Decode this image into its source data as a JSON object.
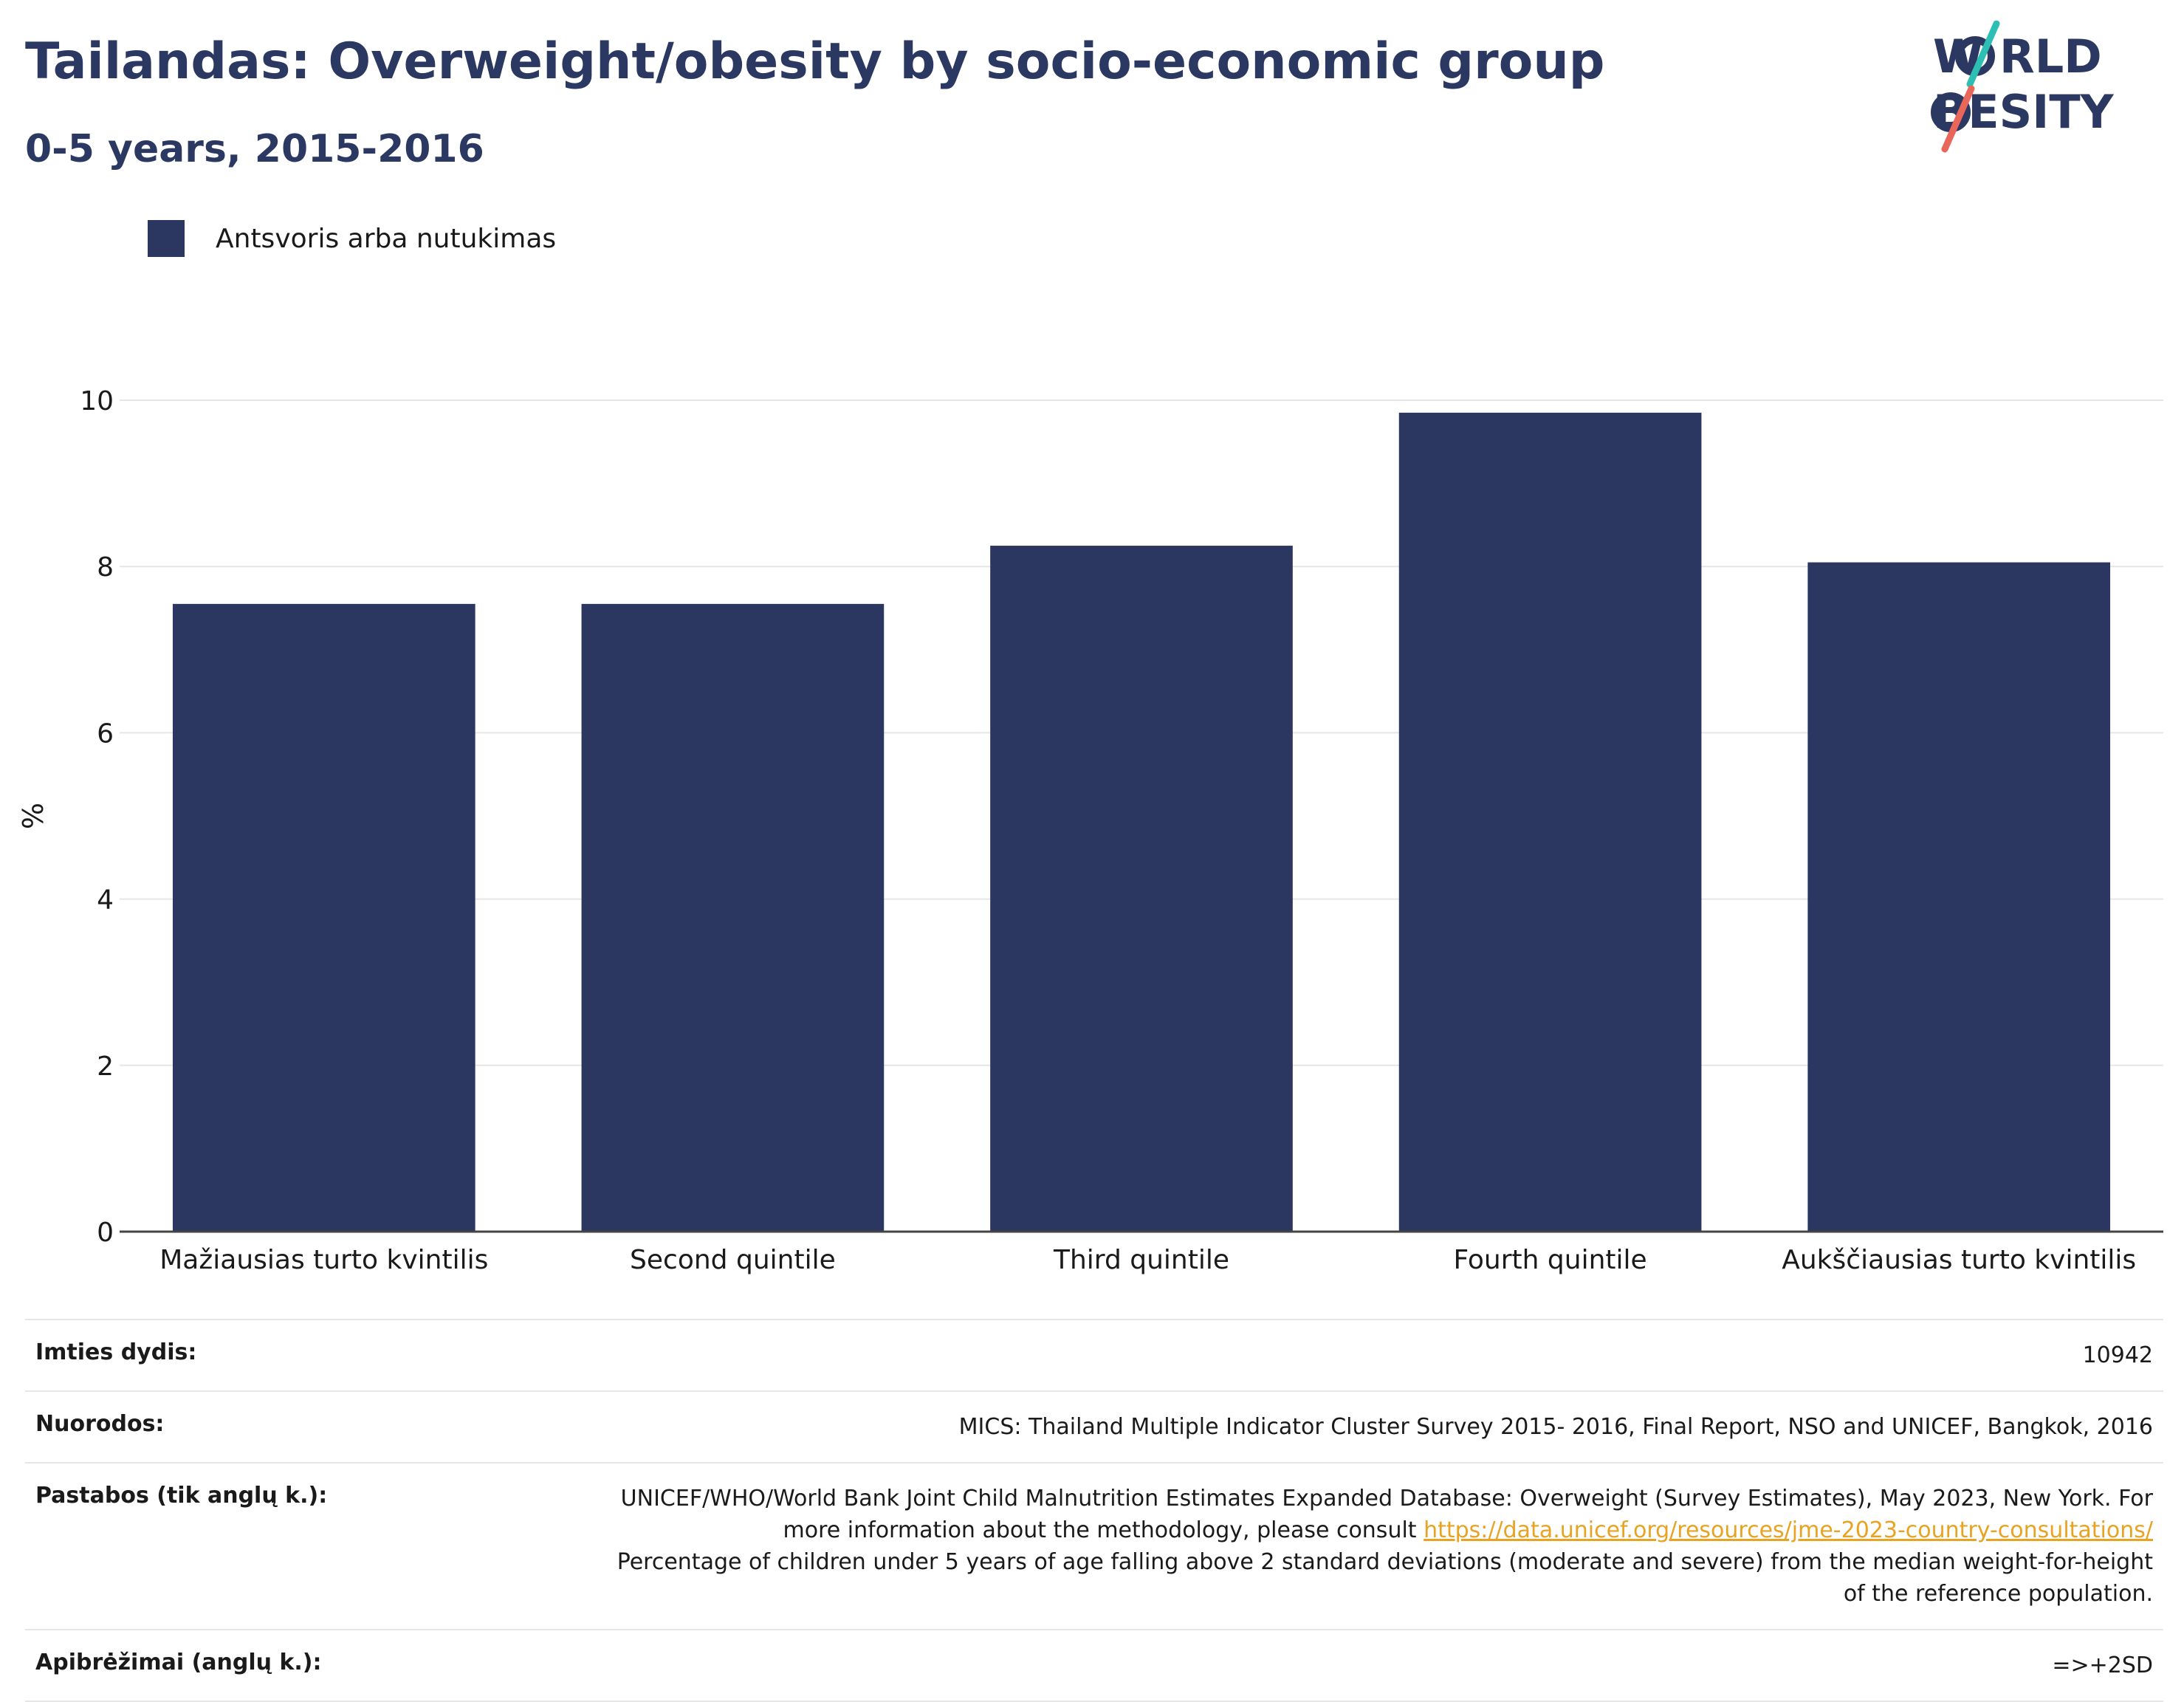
{
  "header": {
    "title": "Tailandas: Overweight/obesity by socio-economic group",
    "subtitle": "0-5 years, 2015-2016"
  },
  "logo": {
    "line1": "W RLD",
    "line2": "BESITY",
    "accent_teal": "#2ebfb4",
    "accent_red": "#e8665a",
    "text_color": "#2b3862"
  },
  "legend": {
    "label": "Antsvoris arba nutukimas",
    "color": "#2b3661"
  },
  "chart_data": {
    "type": "bar",
    "categories": [
      "Mažiausias turto kvintilis",
      "Second quintile",
      "Third quintile",
      "Fourth quintile",
      "Aukščiausias turto kvintilis"
    ],
    "series": [
      {
        "name": "Antsvoris arba nutukimas",
        "values": [
          7.55,
          7.55,
          8.25,
          9.85,
          8.05
        ]
      }
    ],
    "ylabel": "%",
    "xlabel": "",
    "ylim": [
      0,
      10
    ],
    "yticks": [
      0,
      2,
      4,
      6,
      8,
      10
    ],
    "grid": true,
    "bar_color": "#2b3661"
  },
  "info": {
    "sample_size_label": "Imties dydis:",
    "sample_size_value": "10942",
    "references_label": "Nuorodos:",
    "references_value": "MICS: Thailand Multiple Indicator Cluster Survey 2015- 2016, Final Report, NSO and UNICEF, Bangkok, 2016",
    "notes_label": "Pastabos (tik anglų k.):",
    "notes_text_1": "UNICEF/WHO/World Bank Joint Child Malnutrition Estimates Expanded Database: Overweight (Survey Estimates), May 2023, New York. For more information about the methodology, please consult ",
    "notes_link": "https://data.unicef.org/resources/jme-2023-country-consultations/",
    "notes_text_2": "Percentage of children under 5 years of age falling above 2 standard deviations (moderate and severe) from the median weight-for-height of the reference population.",
    "definitions_label": "Apibrėžimai (anglų k.):",
    "definitions_value": "=>+2SD"
  }
}
